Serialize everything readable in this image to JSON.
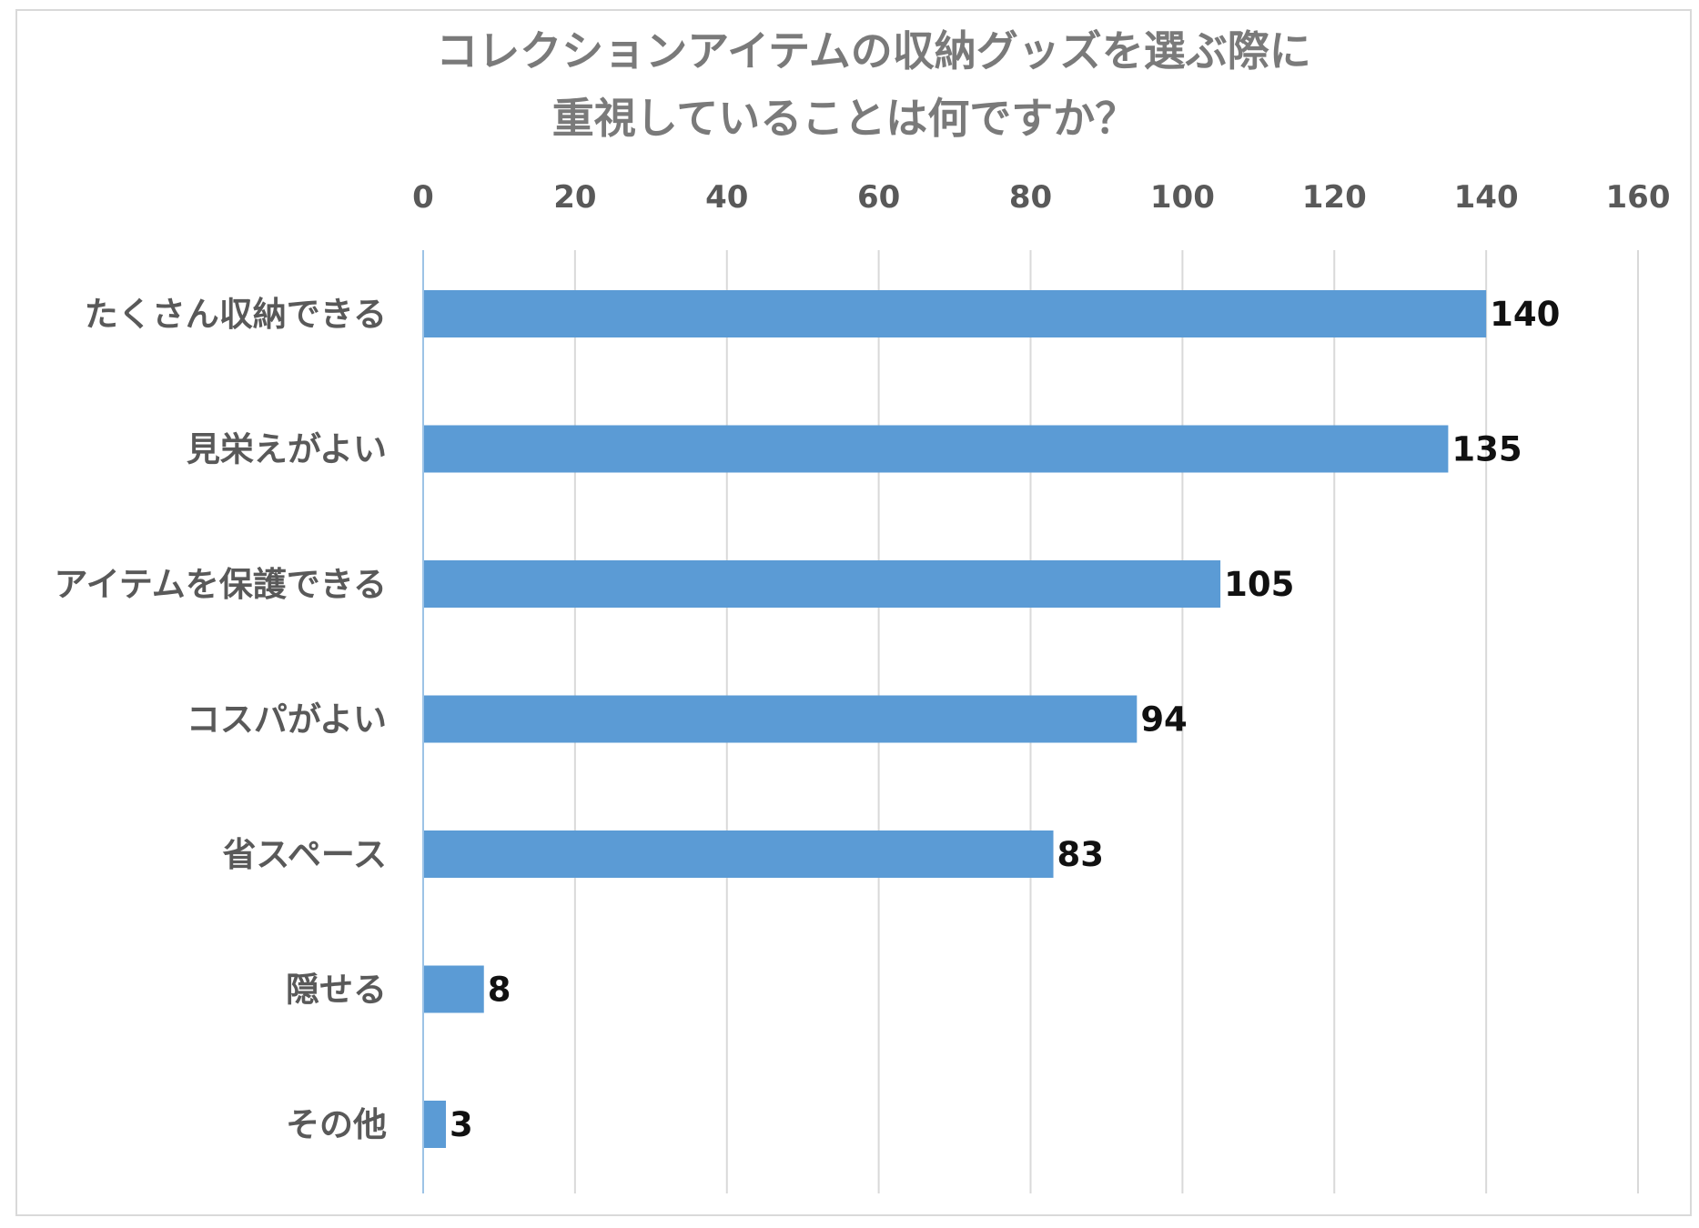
{
  "chart_data": {
    "type": "bar",
    "orientation": "horizontal",
    "title_lines": [
      "コレクションアイテムの収納グッズを選ぶ際に",
      "重視していることは何ですか？"
    ],
    "categories": [
      "たくさん収納できる",
      "見栄えがよい",
      "アイテムを保護できる",
      "コスパがよい",
      "省スペース",
      "隠せる",
      "その他"
    ],
    "values": [
      140,
      135,
      105,
      94,
      83,
      8,
      3
    ],
    "xticks": [
      0,
      20,
      40,
      60,
      80,
      100,
      120,
      140,
      160
    ],
    "xlim": [
      0,
      160
    ],
    "x_axis_position": "top",
    "grid": true,
    "data_labels": true,
    "bar_color": "#5b9bd5",
    "grid_color": "#d9d9d9",
    "axis_color": "#9dc3e6",
    "legend": "none"
  }
}
